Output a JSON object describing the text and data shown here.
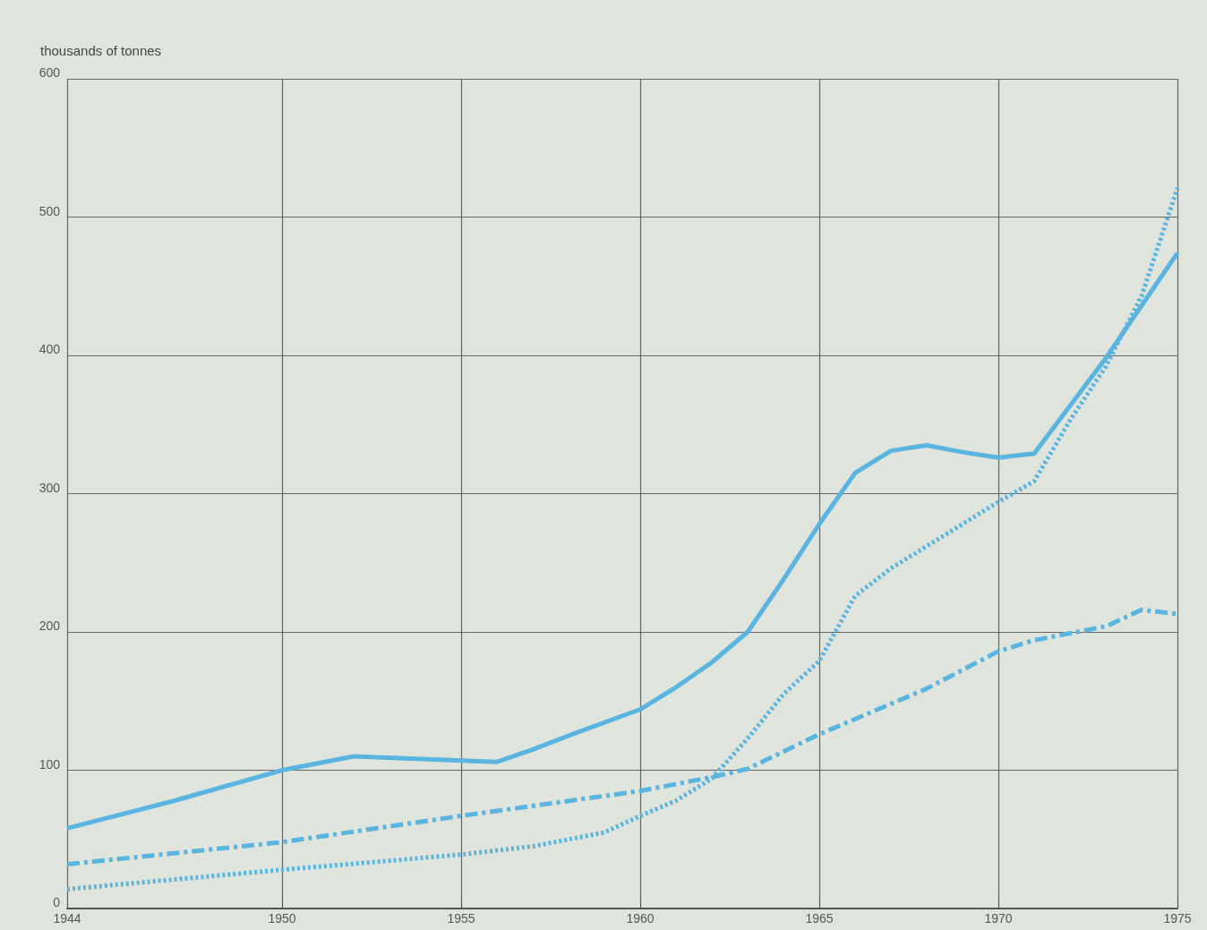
{
  "chart_data": {
    "type": "line",
    "ylabel": "thousands of tonnes",
    "xlim": [
      1944,
      1975
    ],
    "xticks": [
      1944,
      1950,
      1955,
      1960,
      1965,
      1970,
      1975
    ],
    "ylim": [
      0,
      600
    ],
    "yticks": [
      0,
      100,
      200,
      300,
      400,
      500,
      600
    ],
    "grid": true,
    "marker": "none",
    "series": [
      {
        "color": "#5ab4e0",
        "line_style": "solid",
        "x": [
          1944,
          1947,
          1950,
          1952,
          1955,
          1956,
          1957,
          1958,
          1960,
          1961,
          1962,
          1963,
          1964,
          1965,
          1966,
          1967,
          1968,
          1969,
          1970,
          1971,
          1973,
          1975
        ],
        "values": [
          58,
          78,
          100,
          110,
          107,
          106,
          115,
          125,
          144,
          160,
          178,
          200,
          238,
          278,
          315,
          331,
          335,
          330,
          326,
          329,
          398,
          474
        ]
      },
      {
        "color": "#5ab4e0",
        "line_style": "dashed",
        "x": [
          1944,
          1950,
          1955,
          1960,
          1962,
          1963,
          1965,
          1968,
          1970,
          1971,
          1973,
          1974,
          1975
        ],
        "values": [
          32,
          48,
          67,
          85,
          95,
          101,
          126,
          159,
          186,
          194,
          204,
          216,
          213
        ]
      },
      {
        "color": "#5ab4e0",
        "line_style": "dotted",
        "x": [
          1944,
          1950,
          1955,
          1957,
          1959,
          1960,
          1961,
          1962,
          1963,
          1964,
          1965,
          1966,
          1967,
          1968,
          1969,
          1970,
          1971,
          1972,
          1973,
          1974,
          1975
        ],
        "values": [
          14,
          28,
          39,
          45,
          55,
          67,
          78,
          94,
          123,
          155,
          179,
          226,
          246,
          262,
          278,
          294,
          309,
          353,
          392,
          443,
          521
        ]
      }
    ]
  }
}
